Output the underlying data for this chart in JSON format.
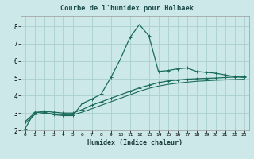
{
  "title": "Courbe de l'humidex pour Holbaek",
  "xlabel": "Humidex (Indice chaleur)",
  "bg_color": "#cce8e8",
  "plot_bg_color": "#cce8e8",
  "grid_color": "#aacfcf",
  "line_color": "#1a6b5a",
  "xlim": [
    -0.5,
    23.5
  ],
  "ylim": [
    2.0,
    8.6
  ],
  "xticks": [
    0,
    1,
    2,
    3,
    4,
    5,
    6,
    7,
    8,
    9,
    10,
    11,
    12,
    13,
    14,
    15,
    16,
    17,
    18,
    19,
    20,
    21,
    22,
    23
  ],
  "yticks": [
    2,
    3,
    4,
    5,
    6,
    7,
    8
  ],
  "line1_x": [
    0,
    1,
    2,
    3,
    4,
    5,
    6,
    7,
    8,
    9,
    10,
    11,
    12,
    13,
    14,
    15,
    16,
    17,
    18,
    19,
    20,
    21,
    22,
    23
  ],
  "line1_y": [
    2.1,
    3.05,
    3.05,
    2.9,
    2.85,
    2.85,
    3.55,
    3.8,
    4.1,
    5.05,
    6.1,
    7.35,
    8.1,
    7.45,
    5.4,
    5.45,
    5.55,
    5.6,
    5.4,
    5.35,
    5.3,
    5.2,
    5.1,
    5.05
  ],
  "line2_x": [
    0,
    1,
    2,
    3,
    4,
    5,
    6,
    7,
    8,
    9,
    10,
    11,
    12,
    13,
    14,
    15,
    16,
    17,
    18,
    19,
    20,
    21,
    22,
    23
  ],
  "line2_y": [
    2.5,
    3.0,
    3.1,
    3.05,
    3.0,
    3.0,
    3.2,
    3.45,
    3.65,
    3.85,
    4.05,
    4.25,
    4.45,
    4.6,
    4.75,
    4.85,
    4.9,
    4.95,
    4.98,
    5.0,
    5.02,
    5.05,
    5.08,
    5.1
  ],
  "line3_x": [
    0,
    1,
    2,
    3,
    4,
    5,
    6,
    7,
    8,
    9,
    10,
    11,
    12,
    13,
    14,
    15,
    16,
    17,
    18,
    19,
    20,
    21,
    22,
    23
  ],
  "line3_y": [
    2.4,
    2.9,
    3.0,
    2.95,
    2.9,
    2.9,
    3.05,
    3.25,
    3.45,
    3.65,
    3.85,
    4.05,
    4.25,
    4.42,
    4.55,
    4.65,
    4.72,
    4.78,
    4.83,
    4.86,
    4.89,
    4.91,
    4.93,
    4.95
  ]
}
